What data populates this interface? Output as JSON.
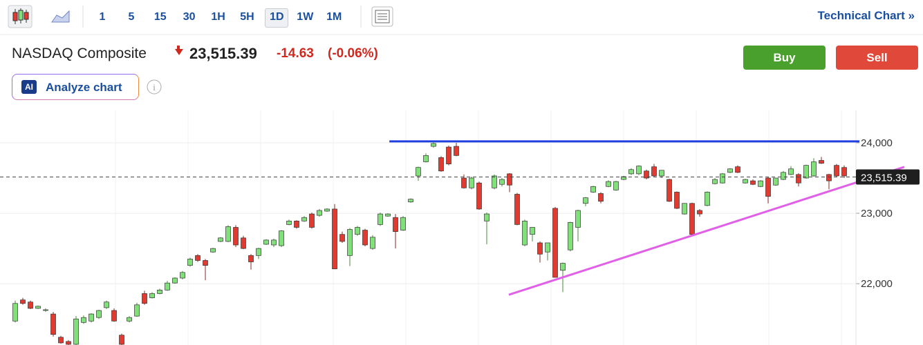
{
  "toolbar": {
    "intervals": [
      "1",
      "5",
      "15",
      "30",
      "1H",
      "5H",
      "1D",
      "1W",
      "1M"
    ],
    "selected_interval": "1D",
    "technical_chart_link": "Technical Chart »"
  },
  "header": {
    "name": "NASDAQ Composite",
    "price": "23,515.39",
    "change": "-14.63",
    "change_percent": "(-0.06%)"
  },
  "buttons": {
    "buy": "Buy",
    "sell": "Sell",
    "ai_badge": "AI",
    "analyze": "Analyze chart"
  },
  "chart_data": {
    "type": "candlestick",
    "up_color": "#82e07a",
    "down_color": "#e03a31",
    "ylim": [
      21130,
      24460
    ],
    "yticks": [
      {
        "value": 22000,
        "label": "22,000"
      },
      {
        "value": 23000,
        "label": "23,000"
      },
      {
        "value": 24000,
        "label": "24,000"
      }
    ],
    "grid": true,
    "last_price": {
      "value": 23515.39,
      "label": "23,515.39"
    },
    "trend_lines": [
      {
        "color": "#1f3fe0",
        "start": [
          49.2,
          24020
        ],
        "end": [
          111,
          24020
        ]
      },
      {
        "color": "#e060e8",
        "start": [
          64.9,
          21843
        ],
        "end": [
          116.9,
          23657
        ]
      }
    ],
    "open": [
      21470,
      21770,
      21740,
      21650,
      21620,
      21570,
      21240,
      21180,
      21140,
      21450,
      21470,
      21520,
      21660,
      21620,
      21270,
      21470,
      21540,
      21860,
      21800,
      21860,
      21910,
      22010,
      22080,
      22260,
      22400,
      22330,
      22450,
      22600,
      22600,
      22800,
      22650,
      22400,
      22400,
      22560,
      22550,
      22540,
      22840,
      22890,
      22890,
      22990,
      22970,
      23030,
      23060,
      22700,
      22400,
      22700,
      22760,
      22500,
      22840,
      22960,
      22940,
      22760,
      23160,
      23530,
      23730,
      23950,
      23790,
      23940,
      23950,
      23500,
      23360,
      23430,
      22890,
      23360,
      23410,
      23560,
      23270,
      22550,
      22700,
      22580,
      22450,
      23070,
      22190,
      22480,
      22800,
      23140,
      23300,
      23280,
      23380,
      23330,
      23480,
      23560,
      23560,
      23600,
      23660,
      23530,
      23480,
      23300,
      22990,
      23140,
      23040,
      23110,
      23420,
      23430,
      23580,
      23660,
      23430,
      23460,
      23380,
      23500,
      23400,
      23480,
      23550,
      23550,
      23500,
      23530,
      23750,
      23550,
      23680,
      23650
    ],
    "high": [
      21760,
      21800,
      21760,
      21690,
      21650,
      21600,
      21260,
      21200,
      21540,
      21550,
      21580,
      21630,
      21760,
      21650,
      21290,
      21540,
      21730,
      21900,
      21880,
      21930,
      22040,
      22090,
      22180,
      22370,
      22420,
      22350,
      22510,
      22660,
      22830,
      22830,
      22680,
      22420,
      22510,
      22630,
      22640,
      22760,
      22910,
      22900,
      22960,
      23010,
      23060,
      23070,
      23130,
      22740,
      22790,
      22820,
      22780,
      22690,
      23010,
      23000,
      22990,
      22960,
      23210,
      23660,
      23850,
      24030,
      23810,
      23960,
      24000,
      23550,
      23520,
      23450,
      23010,
      23550,
      23500,
      23570,
      23290,
      22910,
      22800,
      22600,
      22580,
      23090,
      22300,
      22880,
      23050,
      23230,
      23390,
      23300,
      23470,
      23460,
      23530,
      23640,
      23680,
      23620,
      23700,
      23610,
      23490,
      23310,
      23140,
      23150,
      23060,
      23310,
      23500,
      23570,
      23640,
      23680,
      23490,
      23480,
      23470,
      23520,
      23500,
      23600,
      23670,
      23570,
      23690,
      23780,
      23800,
      23560,
      23700,
      23680
    ],
    "low": [
      21450,
      21700,
      21640,
      21640,
      21600,
      21250,
      21150,
      21130,
      21130,
      21430,
      21450,
      21500,
      21640,
      21460,
      21130,
      21450,
      21530,
      21700,
      21790,
      21850,
      21900,
      22000,
      22060,
      22240,
      22310,
      22050,
      22440,
      22590,
      22590,
      22520,
      22490,
      22200,
      22350,
      22550,
      22520,
      22520,
      22830,
      22780,
      22880,
      22780,
      22950,
      23020,
      22210,
      22580,
      22250,
      22680,
      22530,
      22480,
      22820,
      22950,
      22500,
      22750,
      23150,
      23460,
      23720,
      23930,
      23590,
      23680,
      23810,
      23350,
      23340,
      23050,
      22560,
      23340,
      23380,
      23300,
      22830,
      22530,
      22600,
      22300,
      22330,
      22090,
      21880,
      22460,
      22600,
      23100,
      23290,
      23140,
      23370,
      23320,
      23470,
      23540,
      23540,
      23480,
      23520,
      23500,
      23160,
      23060,
      22980,
      22690,
      22950,
      23100,
      23410,
      23420,
      23570,
      23570,
      23420,
      23400,
      23370,
      23140,
      23390,
      23470,
      23540,
      23380,
      23490,
      23520,
      23700,
      23340,
      23520,
      23500
    ],
    "close": [
      21720,
      21720,
      21650,
      21680,
      21630,
      21280,
      21160,
      21140,
      21500,
      21520,
      21570,
      21620,
      21740,
      21470,
      21140,
      21520,
      21700,
      21720,
      21860,
      21910,
      22010,
      22080,
      22160,
      22350,
      22330,
      22260,
      22500,
      22650,
      22810,
      22550,
      22500,
      22310,
      22500,
      22620,
      22620,
      22750,
      22890,
      22800,
      22940,
      22800,
      23040,
      23060,
      22210,
      22600,
      22770,
      22800,
      22550,
      22660,
      22990,
      22990,
      22740,
      22940,
      23200,
      23650,
      23820,
      23990,
      23600,
      23700,
      23820,
      23360,
      23500,
      23060,
      22990,
      23530,
      23480,
      23400,
      22840,
      22890,
      22800,
      22420,
      22580,
      22090,
      22290,
      22870,
      23040,
      23220,
      23380,
      23170,
      23450,
      23450,
      23520,
      23620,
      23670,
      23500,
      23530,
      23610,
      23170,
      23070,
      23140,
      22700,
      22990,
      23300,
      23480,
      23560,
      23630,
      23580,
      23480,
      23410,
      23460,
      23240,
      23500,
      23580,
      23630,
      23430,
      23680,
      23730,
      23710,
      23460,
      23530,
      23530
    ]
  }
}
